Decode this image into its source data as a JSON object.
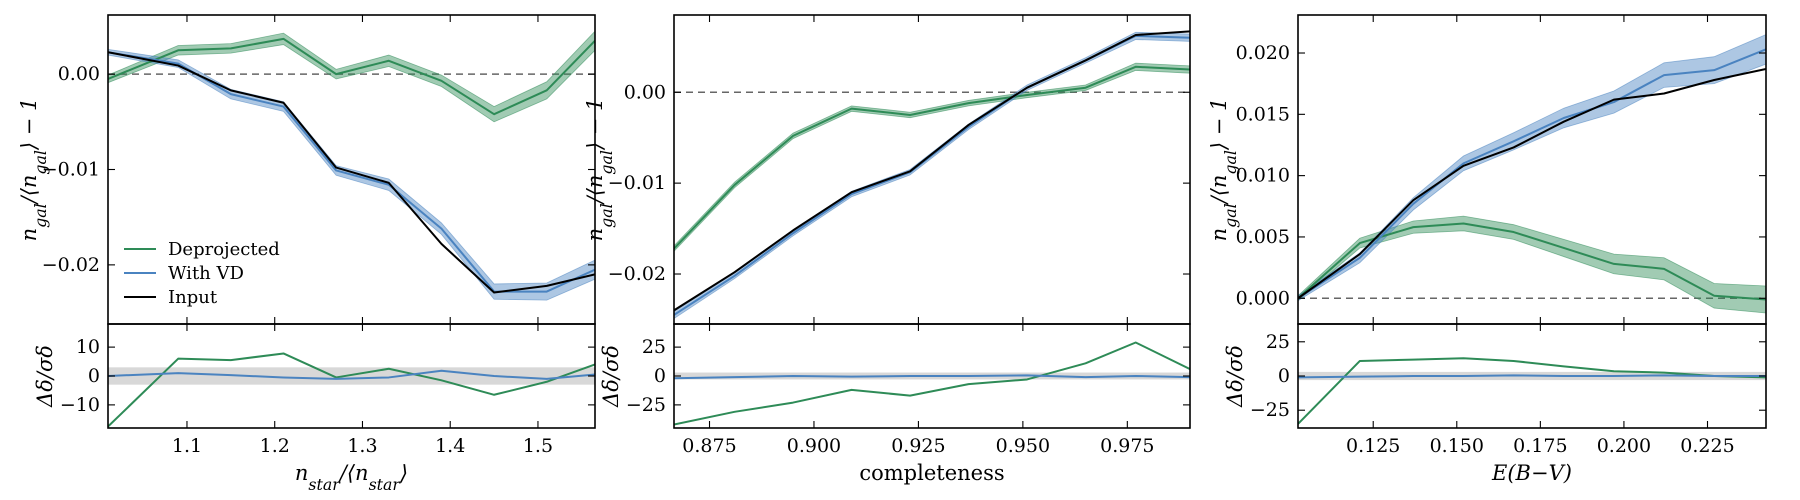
{
  "colors": {
    "deprojected": "#2e8b57",
    "with_vd": "#4a83c0",
    "input": "#000000",
    "band": "#c8c8c8"
  },
  "legend": [
    "Deprojected",
    "With VD",
    "Input"
  ],
  "chart_data": [
    {
      "type": "line",
      "panel": "top-left",
      "xlabel": "",
      "ylabel": "n_gal/⟨n_gal⟩ − 1",
      "xlim": [
        1.01,
        1.565
      ],
      "ylim": [
        -0.0262,
        0.0062
      ],
      "xticks": [
        1.1,
        1.2,
        1.3,
        1.4,
        1.5
      ],
      "xtick_labels": [
        "",
        "",
        "",
        "",
        ""
      ],
      "yticks": [
        -0.02,
        -0.01,
        0.0
      ],
      "ytick_labels": [
        "−0.02",
        "−0.01",
        "0.00"
      ],
      "reference_line": 0,
      "legend_position": "lower-left",
      "series": [
        {
          "name": "Deprojected",
          "color_key": "deprojected",
          "x": [
            1.01,
            1.09,
            1.15,
            1.21,
            1.27,
            1.33,
            1.39,
            1.45,
            1.51,
            1.565
          ],
          "y": [
            -0.0005,
            0.0025,
            0.0027,
            0.0037,
            0.0,
            0.0014,
            -0.0007,
            -0.0042,
            -0.0017,
            0.0035
          ],
          "err": [
            0.0004,
            0.0005,
            0.0005,
            0.0006,
            0.0005,
            0.0006,
            0.0006,
            0.0008,
            0.0009,
            0.001
          ]
        },
        {
          "name": "With VD",
          "color_key": "with_vd",
          "x": [
            1.01,
            1.09,
            1.15,
            1.21,
            1.27,
            1.33,
            1.39,
            1.45,
            1.51,
            1.565
          ],
          "y": [
            0.0023,
            0.0011,
            -0.0021,
            -0.0034,
            -0.0101,
            -0.0116,
            -0.0162,
            -0.0228,
            -0.0228,
            -0.0205
          ],
          "err": [
            0.0003,
            0.0004,
            0.0005,
            0.0005,
            0.0005,
            0.0006,
            0.0006,
            0.0008,
            0.0009,
            0.001
          ]
        },
        {
          "name": "Input",
          "color_key": "input",
          "x": [
            1.01,
            1.09,
            1.15,
            1.21,
            1.27,
            1.33,
            1.39,
            1.45,
            1.51,
            1.565
          ],
          "y": [
            0.0023,
            0.0009,
            -0.0017,
            -0.003,
            -0.0098,
            -0.0114,
            -0.0178,
            -0.0229,
            -0.0222,
            -0.021
          ]
        }
      ]
    },
    {
      "type": "line",
      "panel": "bottom-left",
      "xlabel": "n_star/⟨n_star⟩",
      "ylabel": "Δδ/σ_δ",
      "xlim": [
        1.01,
        1.565
      ],
      "ylim": [
        -18,
        18
      ],
      "xticks": [
        1.1,
        1.2,
        1.3,
        1.4,
        1.5
      ],
      "xtick_labels": [
        "1.1",
        "1.2",
        "1.3",
        "1.4",
        "1.5"
      ],
      "yticks": [
        -10,
        0,
        10
      ],
      "ytick_labels": [
        "−10",
        "0",
        "10"
      ],
      "band": [
        -3,
        3
      ],
      "series": [
        {
          "name": "Deprojected",
          "color_key": "deprojected",
          "x": [
            1.01,
            1.09,
            1.15,
            1.21,
            1.27,
            1.33,
            1.39,
            1.45,
            1.51,
            1.565
          ],
          "y": [
            -17.5,
            6.0,
            5.5,
            7.8,
            -0.5,
            2.5,
            -1.5,
            -6.5,
            -2.0,
            4.0
          ]
        },
        {
          "name": "With VD",
          "color_key": "with_vd",
          "x": [
            1.01,
            1.09,
            1.15,
            1.21,
            1.27,
            1.33,
            1.39,
            1.45,
            1.51,
            1.565
          ],
          "y": [
            0.0,
            1.0,
            0.3,
            -0.5,
            -1.0,
            -0.5,
            1.8,
            0.0,
            -1.0,
            0.5
          ]
        }
      ]
    },
    {
      "type": "line",
      "panel": "top-middle",
      "xlabel": "",
      "ylabel": "n_gal/⟨n_gal⟩ − 1",
      "xlim": [
        0.8665,
        0.99
      ],
      "ylim": [
        -0.0255,
        0.0085
      ],
      "xticks": [
        0.875,
        0.9,
        0.925,
        0.95,
        0.975
      ],
      "xtick_labels": [
        "",
        "",
        "",
        "",
        ""
      ],
      "yticks": [
        -0.02,
        -0.01,
        0.0
      ],
      "ytick_labels": [
        "−0.02",
        "−0.01",
        "0.00"
      ],
      "reference_line": 0,
      "series": [
        {
          "name": "Deprojected",
          "color_key": "deprojected",
          "x": [
            0.8665,
            0.881,
            0.895,
            0.909,
            0.923,
            0.937,
            0.951,
            0.965,
            0.977,
            0.99
          ],
          "y": [
            -0.0172,
            -0.0102,
            -0.0048,
            -0.0018,
            -0.0025,
            -0.0012,
            -0.0003,
            0.0005,
            0.0028,
            0.0025
          ],
          "err": [
            0.0003,
            0.0003,
            0.0003,
            0.0003,
            0.0003,
            0.0003,
            0.0003,
            0.0003,
            0.0004,
            0.0004
          ]
        },
        {
          "name": "With VD",
          "color_key": "with_vd",
          "x": [
            0.8665,
            0.881,
            0.895,
            0.909,
            0.923,
            0.937,
            0.951,
            0.965,
            0.977,
            0.99
          ],
          "y": [
            -0.0245,
            -0.0202,
            -0.0155,
            -0.0112,
            -0.0088,
            -0.0038,
            0.0005,
            0.0035,
            0.0062,
            0.006
          ],
          "err": [
            0.0004,
            0.0003,
            0.0003,
            0.0003,
            0.0003,
            0.0003,
            0.0003,
            0.0003,
            0.0004,
            0.0004
          ]
        },
        {
          "name": "Input",
          "color_key": "input",
          "x": [
            0.8665,
            0.881,
            0.895,
            0.909,
            0.923,
            0.937,
            0.951,
            0.965,
            0.977,
            0.99
          ],
          "y": [
            -0.024,
            -0.0198,
            -0.0152,
            -0.011,
            -0.0087,
            -0.0036,
            0.0005,
            0.0035,
            0.0063,
            0.0067
          ]
        }
      ]
    },
    {
      "type": "line",
      "panel": "bottom-middle",
      "xlabel": "completeness",
      "ylabel": "Δδ/σ_δ",
      "xlim": [
        0.8665,
        0.99
      ],
      "ylim": [
        -45,
        45
      ],
      "xticks": [
        0.875,
        0.9,
        0.925,
        0.95,
        0.975
      ],
      "xtick_labels": [
        "0.875",
        "0.900",
        "0.925",
        "0.950",
        "0.975"
      ],
      "yticks": [
        -25,
        0,
        25
      ],
      "ytick_labels": [
        "−25",
        "0",
        "25"
      ],
      "band": [
        -3,
        3
      ],
      "series": [
        {
          "name": "Deprojected",
          "color_key": "deprojected",
          "x": [
            0.8665,
            0.881,
            0.895,
            0.909,
            0.923,
            0.937,
            0.951,
            0.965,
            0.977,
            0.99
          ],
          "y": [
            -42,
            -31,
            -23,
            -12,
            -17,
            -7,
            -3,
            11,
            29,
            6
          ]
        },
        {
          "name": "With VD",
          "color_key": "with_vd",
          "x": [
            0.8665,
            0.881,
            0.895,
            0.909,
            0.923,
            0.937,
            0.951,
            0.965,
            0.977,
            0.99
          ],
          "y": [
            -2,
            -1,
            0,
            -0.5,
            0,
            0,
            0.5,
            -1,
            0,
            -1
          ]
        }
      ]
    },
    {
      "type": "line",
      "panel": "top-right",
      "xlabel": "",
      "ylabel": "n_gal/⟨n_gal⟩ − 1",
      "xlim": [
        0.1025,
        0.2425
      ],
      "ylim": [
        -0.0021,
        0.0231
      ],
      "xticks": [
        0.125,
        0.15,
        0.175,
        0.2,
        0.225
      ],
      "xtick_labels": [
        "",
        "",
        "",
        "",
        ""
      ],
      "yticks": [
        0.0,
        0.005,
        0.01,
        0.015,
        0.02
      ],
      "ytick_labels": [
        "0.000",
        "0.005",
        "0.010",
        "0.015",
        "0.020"
      ],
      "reference_line": 0,
      "series": [
        {
          "name": "Deprojected",
          "color_key": "deprojected",
          "x": [
            0.1025,
            0.121,
            0.137,
            0.152,
            0.167,
            0.182,
            0.197,
            0.212,
            0.227,
            0.2425
          ],
          "y": [
            0.0,
            0.0045,
            0.0058,
            0.0061,
            0.0054,
            0.0041,
            0.0028,
            0.0024,
            0.0002,
            -0.0001
          ],
          "err": [
            0.0002,
            0.0004,
            0.0005,
            0.0006,
            0.0006,
            0.0007,
            0.0008,
            0.0009,
            0.001,
            0.0011
          ]
        },
        {
          "name": "With VD",
          "color_key": "with_vd",
          "x": [
            0.1025,
            0.121,
            0.137,
            0.152,
            0.167,
            0.182,
            0.197,
            0.212,
            0.227,
            0.2425
          ],
          "y": [
            0.0,
            0.0033,
            0.0077,
            0.011,
            0.0128,
            0.0147,
            0.016,
            0.0182,
            0.0186,
            0.0203
          ],
          "err": [
            0.0002,
            0.0004,
            0.0005,
            0.0006,
            0.0007,
            0.0008,
            0.0009,
            0.001,
            0.0011,
            0.0012
          ]
        },
        {
          "name": "Input",
          "color_key": "input",
          "x": [
            0.1025,
            0.121,
            0.137,
            0.152,
            0.167,
            0.182,
            0.197,
            0.212,
            0.227,
            0.2425
          ],
          "y": [
            0.0,
            0.0036,
            0.008,
            0.0108,
            0.0123,
            0.0144,
            0.0162,
            0.0167,
            0.0178,
            0.0187
          ]
        }
      ]
    },
    {
      "type": "line",
      "panel": "bottom-right",
      "xlabel": "E(B−V)",
      "ylabel": "Δδ/σ_δ",
      "xlim": [
        0.1025,
        0.2425
      ],
      "ylim": [
        -38,
        38
      ],
      "xticks": [
        0.125,
        0.15,
        0.175,
        0.2,
        0.225
      ],
      "xtick_labels": [
        "0.125",
        "0.150",
        "0.175",
        "0.200",
        "0.225"
      ],
      "yticks": [
        -25,
        0,
        25
      ],
      "ytick_labels": [
        "−25",
        "0",
        "25"
      ],
      "band": [
        -3,
        3
      ],
      "series": [
        {
          "name": "Deprojected",
          "color_key": "deprojected",
          "x": [
            0.1025,
            0.121,
            0.137,
            0.152,
            0.167,
            0.182,
            0.197,
            0.212,
            0.227,
            0.2425
          ],
          "y": [
            -35,
            11,
            12,
            13,
            11,
            7,
            3.5,
            2.5,
            0,
            -1
          ]
        },
        {
          "name": "With VD",
          "color_key": "with_vd",
          "x": [
            0.1025,
            0.121,
            0.137,
            0.152,
            0.167,
            0.182,
            0.197,
            0.212,
            0.227,
            0.2425
          ],
          "y": [
            -1,
            -0.5,
            0,
            0,
            0.5,
            0,
            0,
            0.5,
            0,
            0
          ]
        }
      ]
    }
  ]
}
